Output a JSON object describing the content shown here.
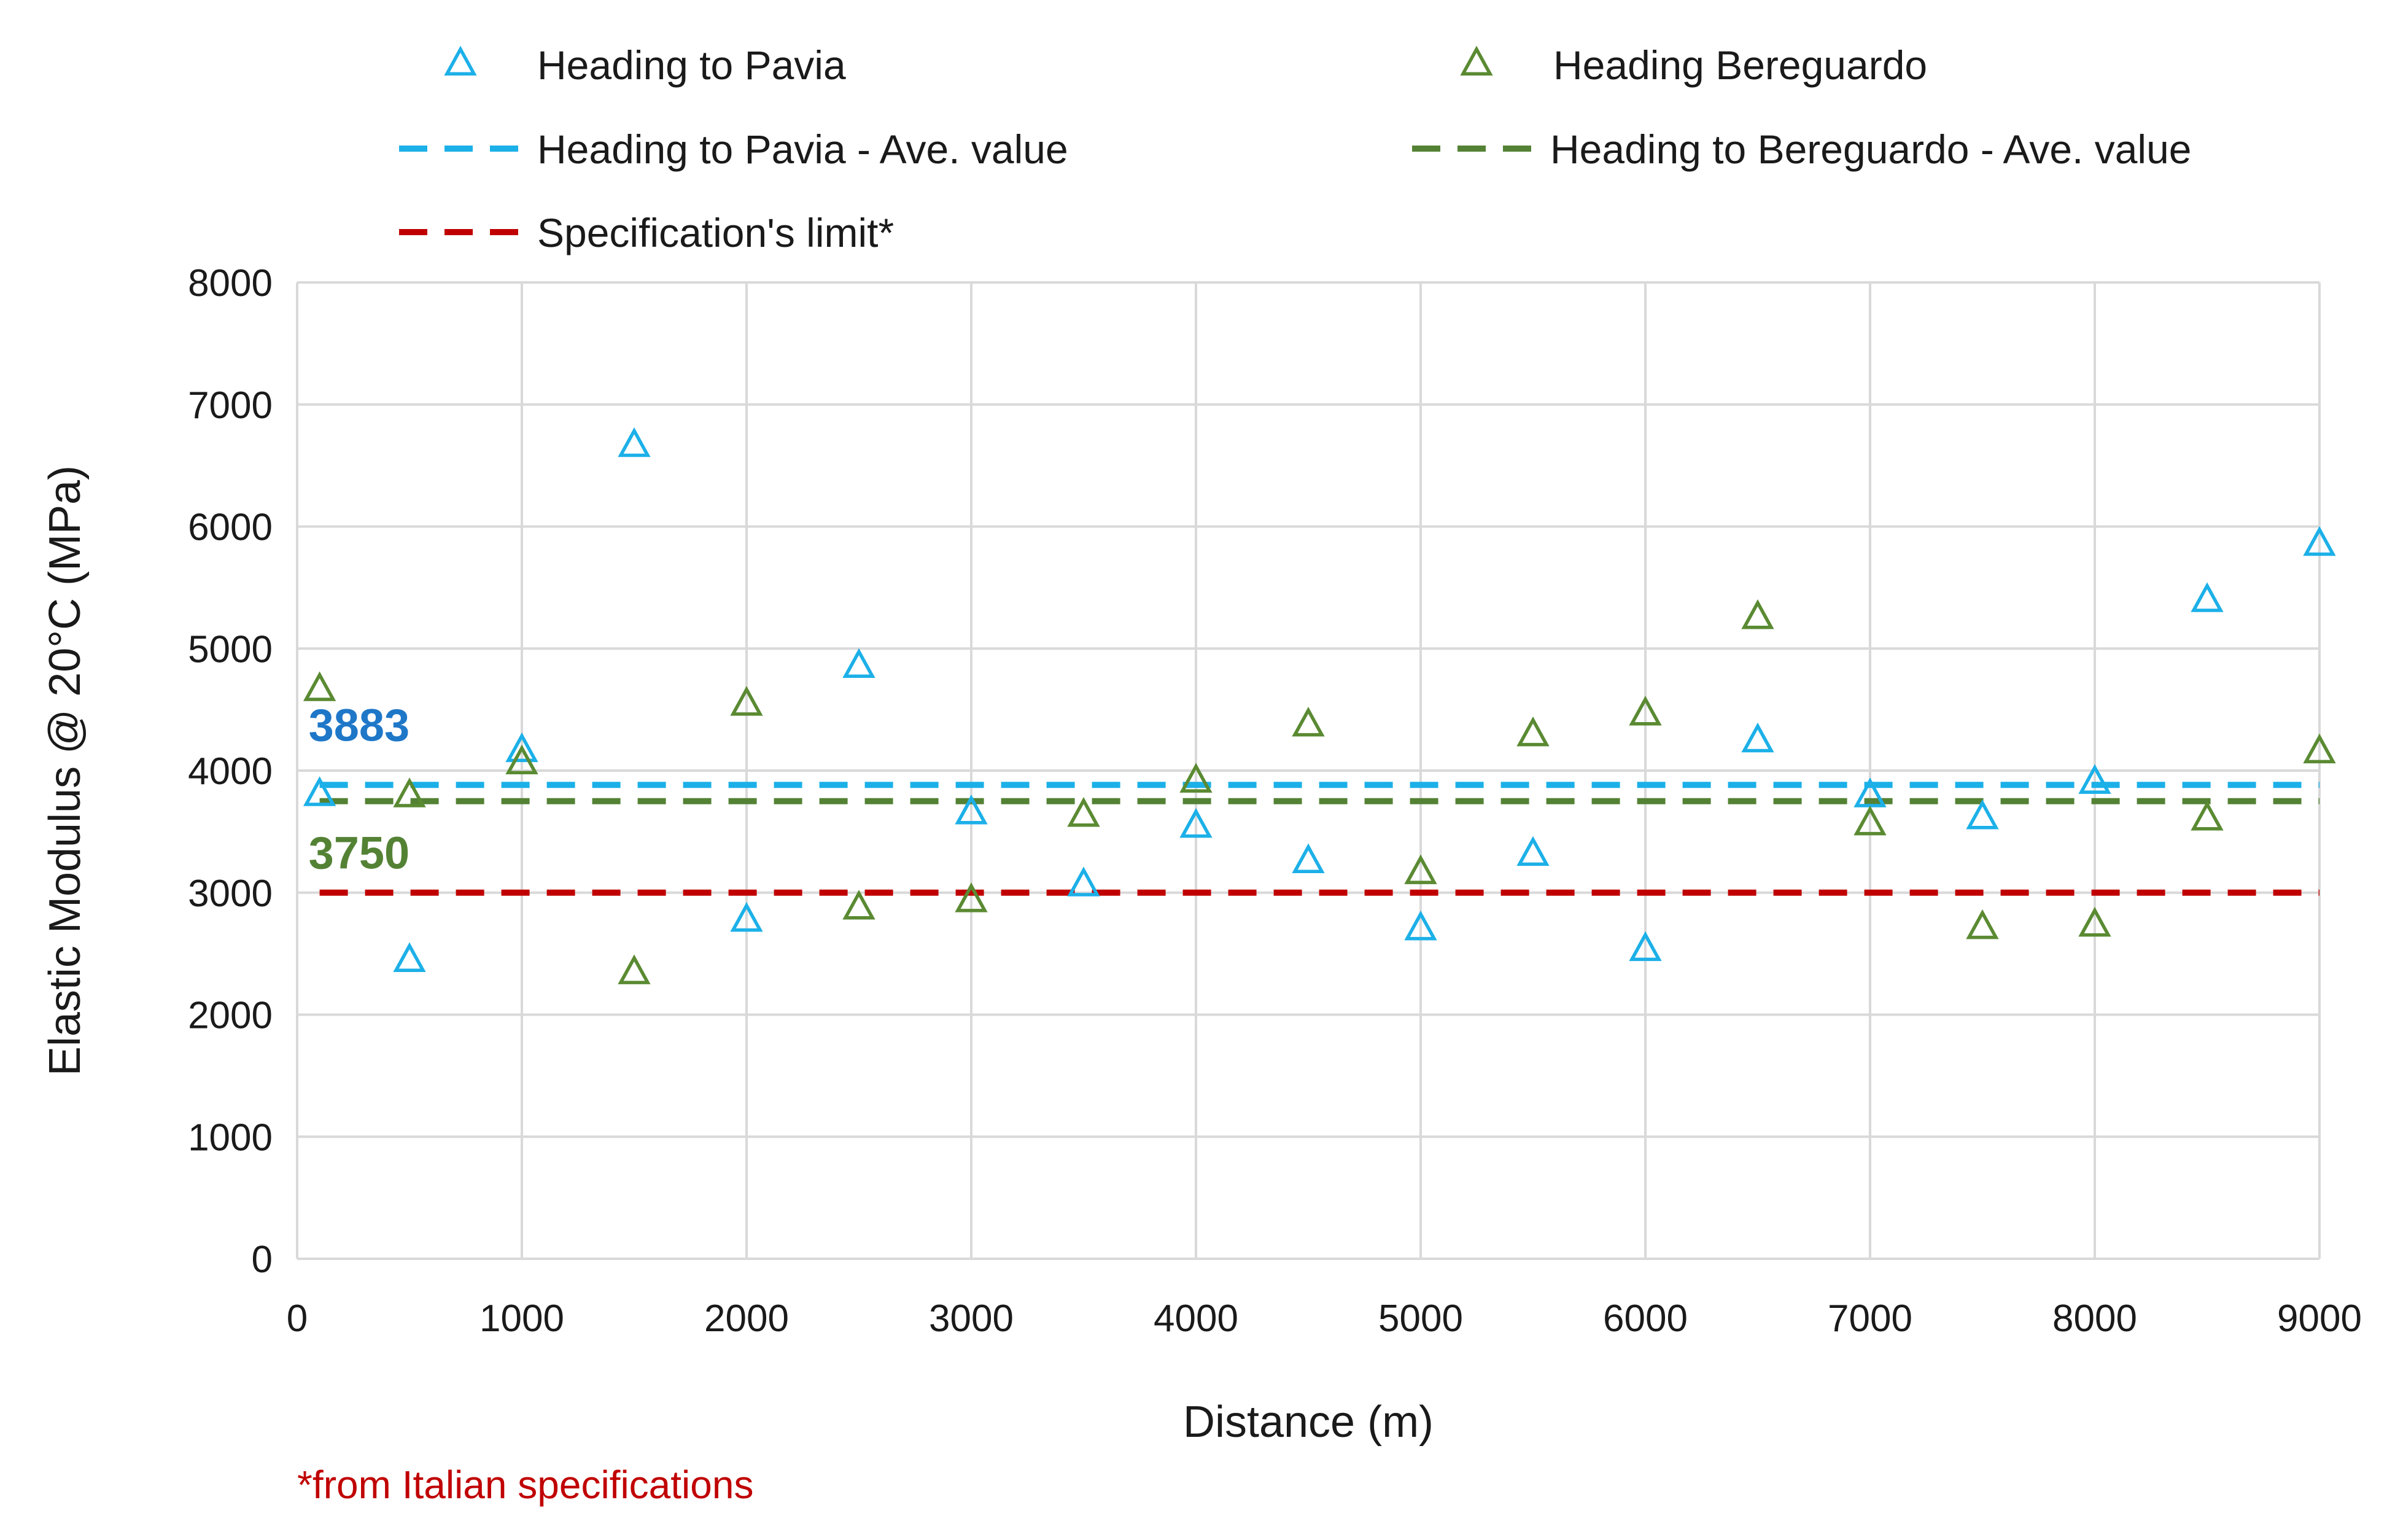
{
  "chart_data": {
    "type": "scatter",
    "title": "",
    "xlabel": "Distance (m)",
    "ylabel": "Elastic Modulus @ 20°C (MPa)",
    "xlim": [
      0,
      9000
    ],
    "ylim": [
      0,
      8000
    ],
    "xticks": [
      0,
      1000,
      2000,
      3000,
      4000,
      5000,
      6000,
      7000,
      8000,
      9000
    ],
    "yticks": [
      0,
      1000,
      2000,
      3000,
      4000,
      5000,
      6000,
      7000,
      8000
    ],
    "grid": true,
    "series": [
      {
        "name": "Heading to Pavia",
        "kind": "scatter",
        "marker": "triangle-open",
        "color": "#1CB0E8",
        "x": [
          100,
          500,
          1000,
          1500,
          2000,
          2500,
          3000,
          3500,
          4000,
          4500,
          5000,
          5500,
          6000,
          6500,
          7000,
          7500,
          8000,
          8500,
          9000
        ],
        "y": [
          3800,
          2440,
          4160,
          6660,
          2770,
          4850,
          3650,
          3060,
          3540,
          3250,
          2700,
          3310,
          2530,
          4240,
          3790,
          3610,
          3900,
          5390,
          5850
        ]
      },
      {
        "name": "Heading Bereguardo",
        "kind": "scatter",
        "marker": "triangle-open",
        "color": "#5A8A32",
        "x": [
          100,
          500,
          1000,
          1500,
          2000,
          2500,
          3000,
          3500,
          4000,
          4500,
          5000,
          5500,
          6000,
          6500,
          7000,
          7500,
          8000,
          8500,
          9000
        ],
        "y": [
          4660,
          3790,
          4060,
          2340,
          4540,
          2870,
          2930,
          3630,
          3910,
          4370,
          3160,
          4290,
          4460,
          5250,
          3560,
          2710,
          2730,
          3600,
          4150
        ]
      },
      {
        "name": "Heading to Pavia - Ave. value",
        "kind": "hline",
        "style": "dashed",
        "color": "#1CB0E8",
        "y": 3883,
        "x_range": [
          100,
          9000
        ]
      },
      {
        "name": "Heading to Bereguardo - Ave. value",
        "kind": "hline",
        "style": "dashed",
        "color": "#548235",
        "y": 3750,
        "x_range": [
          100,
          9000
        ]
      },
      {
        "name": "Specification's limit*",
        "kind": "hline",
        "style": "dashed",
        "color": "#C00000",
        "y": 3000,
        "x_range": [
          100,
          9000
        ]
      }
    ],
    "annotations": [
      {
        "text": "3883",
        "color": "#1F77C8",
        "x": 100,
        "y": 3883,
        "placement": "above-left"
      },
      {
        "text": "3750",
        "color": "#548235",
        "x": 100,
        "y": 3750,
        "placement": "below-left"
      }
    ],
    "legend": {
      "position": "top",
      "entries": [
        "Heading to Pavia",
        "Heading Bereguardo",
        "Heading to Pavia - Ave. value",
        "Heading to Bereguardo - Ave. value",
        "Specification's limit*"
      ]
    },
    "footnote": {
      "text": "*from Italian specifications",
      "color": "#C00000"
    }
  }
}
